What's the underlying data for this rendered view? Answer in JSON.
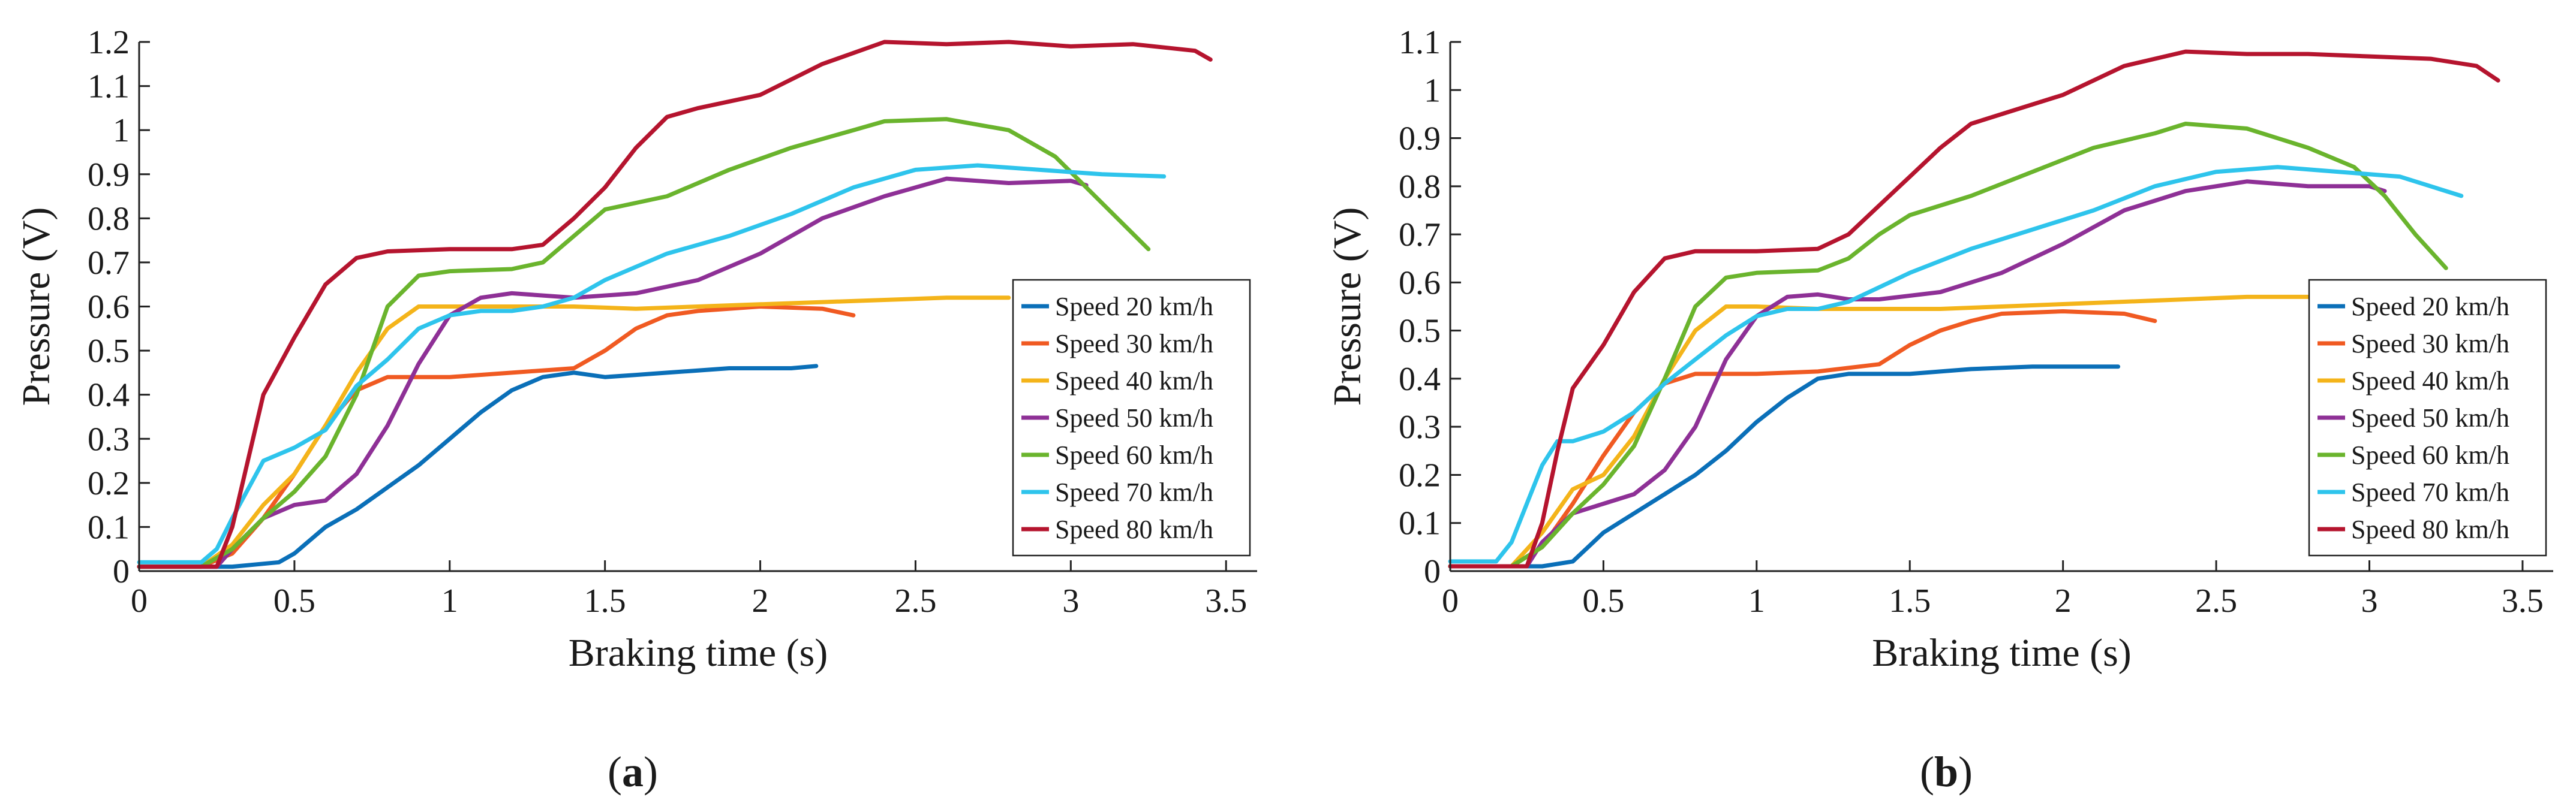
{
  "colors": {
    "Speed 20 km/h": "#0a6fb8",
    "Speed 30 km/h": "#f05a22",
    "Speed 40 km/h": "#f4b41a",
    "Speed 50 km/h": "#8e3096",
    "Speed 60 km/h": "#6ab42d",
    "Speed 70 km/h": "#2ec4ec",
    "Speed 80 km/h": "#b5142e",
    "axis": "#222222"
  },
  "chart_data": [
    {
      "type": "line",
      "panel_label": "a",
      "title": "",
      "xlabel": "Braking time (s)",
      "ylabel": "Pressure (V)",
      "xlim": [
        0,
        3.6
      ],
      "ylim": [
        0,
        1.2
      ],
      "xticks": [
        0,
        0.5,
        1,
        1.5,
        2,
        2.5,
        3,
        3.5
      ],
      "xtick_labels": [
        "0",
        "0.5",
        "1",
        "1.5",
        "2",
        "2.5",
        "3",
        "3.5"
      ],
      "yticks": [
        0,
        0.1,
        0.2,
        0.3,
        0.4,
        0.5,
        0.6,
        0.7,
        0.8,
        0.9,
        1,
        1.1,
        1.2
      ],
      "ytick_labels": [
        "0",
        "0.1",
        "0.2",
        "0.3",
        "0.4",
        "0.5",
        "0.6",
        "0.7",
        "0.8",
        "0.9",
        "1",
        "1.1",
        "1.2"
      ],
      "legend_position": "lower-right",
      "series": [
        {
          "name": "Speed 20 km/h",
          "x": [
            0,
            0.3,
            0.45,
            0.5,
            0.55,
            0.6,
            0.7,
            0.8,
            0.9,
            1,
            1.1,
            1.2,
            1.3,
            1.4,
            1.5,
            1.6,
            1.7,
            1.8,
            1.9,
            2,
            2.1,
            2.18
          ],
          "y": [
            0.01,
            0.01,
            0.02,
            0.04,
            0.07,
            0.1,
            0.14,
            0.19,
            0.24,
            0.3,
            0.36,
            0.41,
            0.44,
            0.45,
            0.44,
            0.445,
            0.45,
            0.455,
            0.46,
            0.46,
            0.46,
            0.465
          ]
        },
        {
          "name": "Speed 30 km/h",
          "x": [
            0,
            0.2,
            0.3,
            0.4,
            0.5,
            0.6,
            0.7,
            0.8,
            1,
            1.2,
            1.4,
            1.5,
            1.6,
            1.7,
            1.8,
            2,
            2.2,
            2.3
          ],
          "y": [
            0.01,
            0.01,
            0.04,
            0.12,
            0.22,
            0.33,
            0.41,
            0.44,
            0.44,
            0.45,
            0.46,
            0.5,
            0.55,
            0.58,
            0.59,
            0.6,
            0.595,
            0.58
          ]
        },
        {
          "name": "Speed 40 km/h",
          "x": [
            0,
            0.2,
            0.3,
            0.4,
            0.5,
            0.6,
            0.7,
            0.8,
            0.9,
            1,
            1.2,
            1.4,
            1.6,
            1.8,
            2,
            2.2,
            2.4,
            2.6,
            2.8
          ],
          "y": [
            0.01,
            0.01,
            0.06,
            0.15,
            0.22,
            0.33,
            0.45,
            0.55,
            0.6,
            0.6,
            0.6,
            0.6,
            0.595,
            0.6,
            0.605,
            0.61,
            0.615,
            0.62,
            0.62
          ]
        },
        {
          "name": "Speed 50 km/h",
          "x": [
            0,
            0.25,
            0.3,
            0.4,
            0.5,
            0.6,
            0.7,
            0.8,
            0.9,
            1,
            1.1,
            1.2,
            1.3,
            1.4,
            1.6,
            1.8,
            2,
            2.2,
            2.4,
            2.6,
            2.8,
            3,
            3.05
          ],
          "y": [
            0.01,
            0.01,
            0.05,
            0.12,
            0.15,
            0.16,
            0.22,
            0.33,
            0.47,
            0.58,
            0.62,
            0.63,
            0.625,
            0.62,
            0.63,
            0.66,
            0.72,
            0.8,
            0.85,
            0.89,
            0.88,
            0.885,
            0.875
          ]
        },
        {
          "name": "Speed 60 km/h",
          "x": [
            0,
            0.2,
            0.3,
            0.4,
            0.5,
            0.6,
            0.7,
            0.8,
            0.9,
            1,
            1.2,
            1.3,
            1.4,
            1.5,
            1.7,
            1.9,
            2.1,
            2.3,
            2.4,
            2.6,
            2.8,
            2.95,
            3.05,
            3.15,
            3.25
          ],
          "y": [
            0.01,
            0.01,
            0.05,
            0.12,
            0.18,
            0.26,
            0.4,
            0.6,
            0.67,
            0.68,
            0.685,
            0.7,
            0.76,
            0.82,
            0.85,
            0.91,
            0.96,
            1.0,
            1.02,
            1.025,
            1.0,
            0.94,
            0.87,
            0.8,
            0.73
          ]
        },
        {
          "name": "Speed 70 km/h",
          "x": [
            0,
            0.2,
            0.25,
            0.3,
            0.4,
            0.5,
            0.6,
            0.7,
            0.8,
            0.9,
            1,
            1.1,
            1.2,
            1.3,
            1.4,
            1.5,
            1.7,
            1.9,
            2.1,
            2.3,
            2.5,
            2.7,
            2.9,
            3.1,
            3.3
          ],
          "y": [
            0.02,
            0.02,
            0.05,
            0.12,
            0.25,
            0.28,
            0.32,
            0.42,
            0.48,
            0.55,
            0.58,
            0.59,
            0.59,
            0.6,
            0.62,
            0.66,
            0.72,
            0.76,
            0.81,
            0.87,
            0.91,
            0.92,
            0.91,
            0.9,
            0.895
          ]
        },
        {
          "name": "Speed 80 km/h",
          "x": [
            0,
            0.25,
            0.3,
            0.35,
            0.4,
            0.5,
            0.6,
            0.7,
            0.8,
            1,
            1.2,
            1.3,
            1.4,
            1.5,
            1.6,
            1.7,
            1.8,
            2,
            2.2,
            2.4,
            2.6,
            2.8,
            3,
            3.2,
            3.4,
            3.45
          ],
          "y": [
            0.01,
            0.01,
            0.1,
            0.25,
            0.4,
            0.53,
            0.65,
            0.71,
            0.725,
            0.73,
            0.73,
            0.74,
            0.8,
            0.87,
            0.96,
            1.03,
            1.05,
            1.08,
            1.15,
            1.2,
            1.195,
            1.2,
            1.19,
            1.195,
            1.18,
            1.16
          ]
        }
      ]
    },
    {
      "type": "line",
      "panel_label": "b",
      "title": "",
      "xlabel": "Braking time (s)",
      "ylabel": "Pressure (V)",
      "xlim": [
        0,
        3.6
      ],
      "ylim": [
        0,
        1.1
      ],
      "xticks": [
        0,
        0.5,
        1,
        1.5,
        2,
        2.5,
        3,
        3.5
      ],
      "xtick_labels": [
        "0",
        "0.5",
        "1",
        "1.5",
        "2",
        "2.5",
        "3",
        "3.5"
      ],
      "yticks": [
        0,
        0.1,
        0.2,
        0.3,
        0.4,
        0.5,
        0.6,
        0.7,
        0.8,
        0.9,
        1,
        1.1
      ],
      "ytick_labels": [
        "0",
        "0.1",
        "0.2",
        "0.3",
        "0.4",
        "0.5",
        "0.6",
        "0.7",
        "0.8",
        "0.9",
        "1",
        "1.1"
      ],
      "legend_position": "lower-right",
      "series": [
        {
          "name": "Speed 20 km/h",
          "x": [
            0,
            0.3,
            0.4,
            0.45,
            0.5,
            0.55,
            0.6,
            0.7,
            0.8,
            0.9,
            1,
            1.1,
            1.2,
            1.3,
            1.5,
            1.7,
            1.9,
            2.1,
            2.18
          ],
          "y": [
            0.01,
            0.01,
            0.02,
            0.05,
            0.08,
            0.1,
            0.12,
            0.16,
            0.2,
            0.25,
            0.31,
            0.36,
            0.4,
            0.41,
            0.41,
            0.42,
            0.425,
            0.425,
            0.425
          ]
        },
        {
          "name": "Speed 30 km/h",
          "x": [
            0,
            0.2,
            0.3,
            0.4,
            0.5,
            0.6,
            0.7,
            0.8,
            1,
            1.2,
            1.4,
            1.5,
            1.6,
            1.7,
            1.8,
            2,
            2.2,
            2.3
          ],
          "y": [
            0.01,
            0.01,
            0.05,
            0.14,
            0.24,
            0.33,
            0.39,
            0.41,
            0.41,
            0.415,
            0.43,
            0.47,
            0.5,
            0.52,
            0.535,
            0.54,
            0.535,
            0.52
          ]
        },
        {
          "name": "Speed 40 km/h",
          "x": [
            0,
            0.2,
            0.3,
            0.4,
            0.5,
            0.6,
            0.7,
            0.8,
            0.9,
            1,
            1.2,
            1.4,
            1.6,
            1.8,
            2,
            2.2,
            2.4,
            2.6,
            2.8
          ],
          "y": [
            0.01,
            0.01,
            0.08,
            0.17,
            0.2,
            0.28,
            0.4,
            0.5,
            0.55,
            0.55,
            0.545,
            0.545,
            0.545,
            0.55,
            0.555,
            0.56,
            0.565,
            0.57,
            0.57
          ]
        },
        {
          "name": "Speed 50 km/h",
          "x": [
            0,
            0.25,
            0.3,
            0.4,
            0.5,
            0.6,
            0.7,
            0.8,
            0.9,
            1,
            1.1,
            1.2,
            1.3,
            1.4,
            1.6,
            1.8,
            2,
            2.2,
            2.4,
            2.6,
            2.8,
            3,
            3.05
          ],
          "y": [
            0.01,
            0.01,
            0.06,
            0.12,
            0.14,
            0.16,
            0.21,
            0.3,
            0.44,
            0.53,
            0.57,
            0.575,
            0.565,
            0.565,
            0.58,
            0.62,
            0.68,
            0.75,
            0.79,
            0.81,
            0.8,
            0.8,
            0.79
          ]
        },
        {
          "name": "Speed 60 km/h",
          "x": [
            0,
            0.2,
            0.3,
            0.4,
            0.5,
            0.6,
            0.7,
            0.8,
            0.9,
            1,
            1.2,
            1.3,
            1.4,
            1.5,
            1.7,
            1.9,
            2.1,
            2.3,
            2.4,
            2.6,
            2.8,
            2.95,
            3.05,
            3.15,
            3.25
          ],
          "y": [
            0.01,
            0.01,
            0.05,
            0.12,
            0.18,
            0.26,
            0.4,
            0.55,
            0.61,
            0.62,
            0.625,
            0.65,
            0.7,
            0.74,
            0.78,
            0.83,
            0.88,
            0.91,
            0.93,
            0.92,
            0.88,
            0.84,
            0.78,
            0.7,
            0.63
          ]
        },
        {
          "name": "Speed 70 km/h",
          "x": [
            0,
            0.15,
            0.2,
            0.25,
            0.3,
            0.35,
            0.4,
            0.5,
            0.6,
            0.7,
            0.8,
            0.9,
            1,
            1.1,
            1.2,
            1.3,
            1.4,
            1.5,
            1.7,
            1.9,
            2.1,
            2.3,
            2.5,
            2.7,
            2.9,
            3.1,
            3.3
          ],
          "y": [
            0.02,
            0.02,
            0.06,
            0.14,
            0.22,
            0.27,
            0.27,
            0.29,
            0.33,
            0.39,
            0.44,
            0.49,
            0.53,
            0.545,
            0.545,
            0.56,
            0.59,
            0.62,
            0.67,
            0.71,
            0.75,
            0.8,
            0.83,
            0.84,
            0.83,
            0.82,
            0.78
          ]
        },
        {
          "name": "Speed 80 km/h",
          "x": [
            0,
            0.25,
            0.3,
            0.35,
            0.4,
            0.5,
            0.6,
            0.7,
            0.8,
            1,
            1.2,
            1.3,
            1.4,
            1.5,
            1.6,
            1.7,
            1.8,
            2,
            2.2,
            2.4,
            2.6,
            2.8,
            3,
            3.2,
            3.35,
            3.42
          ],
          "y": [
            0.01,
            0.01,
            0.1,
            0.25,
            0.38,
            0.47,
            0.58,
            0.65,
            0.665,
            0.665,
            0.67,
            0.7,
            0.76,
            0.82,
            0.88,
            0.93,
            0.95,
            0.99,
            1.05,
            1.08,
            1.075,
            1.075,
            1.07,
            1.065,
            1.05,
            1.02
          ]
        }
      ]
    }
  ]
}
